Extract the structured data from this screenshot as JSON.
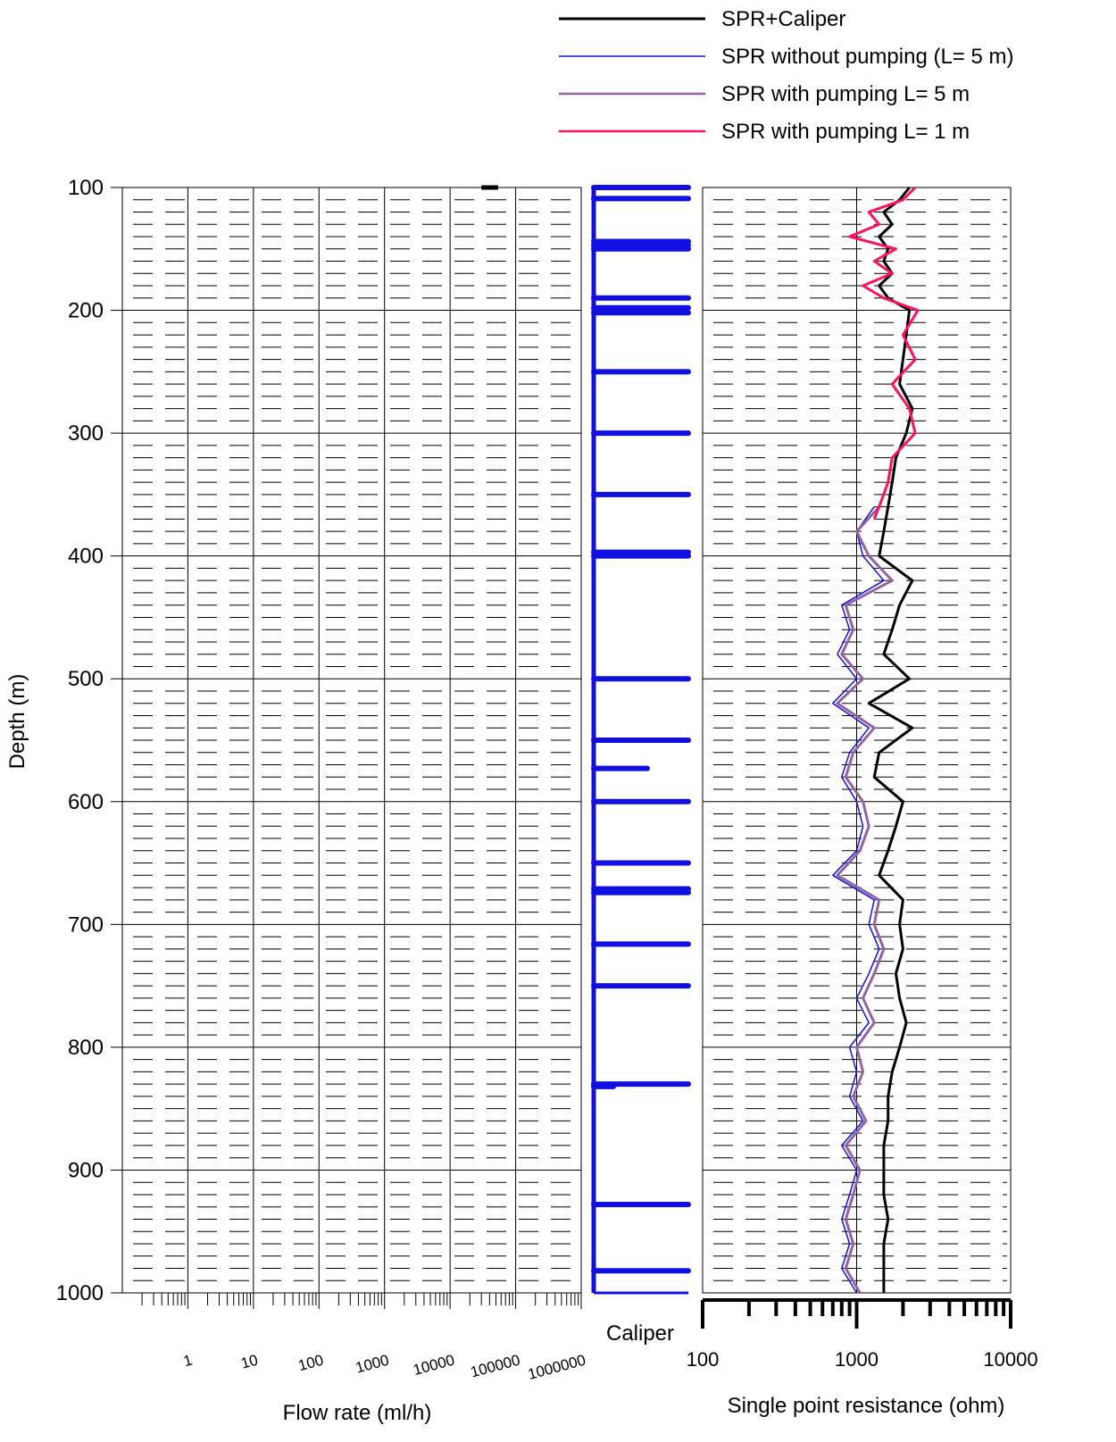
{
  "legend": {
    "items": [
      {
        "label": "SPR+Caliper",
        "color": "#000000"
      },
      {
        "label": "SPR without pumping (L= 5 m)",
        "color": "#1010e0"
      },
      {
        "label": "SPR with pumping L= 5 m",
        "color": "#9464a0"
      },
      {
        "label": "SPR with pumping L= 1 m",
        "color": "#ff1060"
      }
    ]
  },
  "chart_data": {
    "type": "line",
    "ylabel": "Depth (m)",
    "depth_axis": {
      "ylim": [
        100,
        1000
      ],
      "ticks": [
        "100",
        "200",
        "300",
        "400",
        "500",
        "600",
        "700",
        "800",
        "900",
        "1000"
      ],
      "inverted": true
    },
    "flow_panel": {
      "xlabel": "Flow rate (ml/h)",
      "scale": "log",
      "xlim": [
        0.1,
        1000000
      ],
      "ticks": [
        "1",
        "10",
        "100",
        "1000",
        "10000",
        "100000",
        "1000000"
      ],
      "grid": true,
      "markers": [
        {
          "depth": 100,
          "flow_rate": 30000
        }
      ]
    },
    "caliper_panel": {
      "label": "Caliper",
      "spike_depths": [
        100,
        109,
        144,
        147,
        150,
        190,
        198,
        202,
        250,
        300,
        350,
        397,
        400,
        500,
        550,
        573,
        600,
        650,
        671,
        674,
        716,
        750,
        830,
        832,
        928,
        982
      ]
    },
    "resistance_panel": {
      "xlabel": "Single point resistance (ohm)",
      "scale": "log",
      "xlim": [
        100,
        10000
      ],
      "ticks": [
        "100",
        "1000",
        "10000"
      ],
      "grid": true,
      "series": [
        {
          "name": "SPR+Caliper",
          "color": "#000000",
          "depth": [
            100,
            110,
            120,
            130,
            140,
            150,
            160,
            170,
            180,
            190,
            200,
            220,
            240,
            260,
            280,
            300,
            320,
            340,
            360,
            380,
            400,
            420,
            440,
            460,
            480,
            500,
            520,
            540,
            560,
            580,
            600,
            620,
            640,
            660,
            680,
            700,
            720,
            740,
            760,
            780,
            800,
            820,
            840,
            860,
            880,
            900,
            920,
            940,
            960,
            980,
            1000
          ],
          "resistance": [
            2200,
            1900,
            1500,
            1700,
            1400,
            1600,
            1500,
            1700,
            1400,
            1600,
            2200,
            2100,
            2000,
            1900,
            2300,
            2100,
            1800,
            1700,
            1600,
            1500,
            1400,
            2300,
            1900,
            1700,
            1500,
            2200,
            1200,
            2300,
            1400,
            1300,
            2000,
            1800,
            1600,
            1400,
            2000,
            1900,
            2000,
            1800,
            1900,
            2100,
            1900,
            1700,
            1600,
            1600,
            1500,
            1500,
            1500,
            1600,
            1500,
            1500,
            1500
          ]
        },
        {
          "name": "SPR without pumping (L= 5 m)",
          "color": "#1010e0",
          "depth": [
            360,
            380,
            400,
            420,
            440,
            460,
            480,
            500,
            520,
            540,
            560,
            580,
            600,
            620,
            640,
            660,
            680,
            700,
            720,
            740,
            760,
            780,
            800,
            820,
            840,
            860,
            880,
            900,
            920,
            940,
            960,
            980,
            1000
          ],
          "resistance": [
            1300,
            1000,
            1100,
            1500,
            800,
            900,
            750,
            1000,
            700,
            1200,
            900,
            800,
            1000,
            1100,
            1000,
            700,
            1300,
            1200,
            1400,
            1200,
            1000,
            1200,
            900,
            1000,
            900,
            1100,
            800,
            1000,
            900,
            800,
            900,
            800,
            1000
          ]
        },
        {
          "name": "SPR with pumping L= 5 m",
          "color": "#9464a0",
          "depth": [
            360,
            380,
            400,
            420,
            440,
            460,
            480,
            500,
            520,
            540,
            560,
            580,
            600,
            620,
            640,
            660,
            680,
            700,
            720,
            740,
            760,
            780,
            800,
            820,
            840,
            860,
            880,
            900,
            920,
            940,
            960,
            980,
            1000
          ],
          "resistance": [
            1400,
            1000,
            1200,
            1700,
            850,
            950,
            800,
            1100,
            750,
            1300,
            950,
            850,
            1100,
            1200,
            1050,
            750,
            1400,
            1300,
            1500,
            1300,
            1100,
            1300,
            1000,
            1100,
            950,
            1150,
            850,
            1050,
            950,
            850,
            950,
            850,
            1050
          ]
        },
        {
          "name": "SPR with pumping L= 1 m",
          "color": "#ff1060",
          "depth": [
            100,
            110,
            120,
            130,
            140,
            150,
            160,
            170,
            180,
            190,
            200,
            220,
            240,
            260,
            280,
            300,
            320,
            340,
            360,
            370
          ],
          "resistance": [
            2400,
            2000,
            1200,
            1400,
            900,
            1800,
            1300,
            1700,
            1100,
            1500,
            2500,
            2000,
            2400,
            1700,
            2200,
            2400,
            1700,
            1600,
            1400,
            1300
          ]
        }
      ]
    }
  }
}
